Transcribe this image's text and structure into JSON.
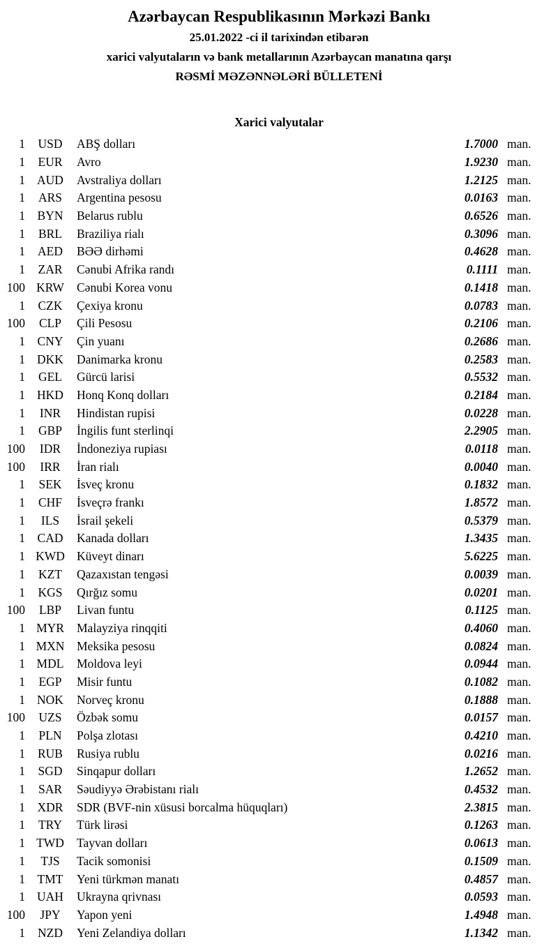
{
  "header": {
    "title": "Azərbaycan Respublikasının Mərkəzi Bankı",
    "date_line": "25.01.2022 -ci il tarixindən etibarən",
    "subject_line": "xarici valyutaların və bank metallarının Azərbaycan manatına qarşı",
    "bulletin_line": "RƏSMİ MƏZƏNNƏLƏRİ BÜLLETENİ"
  },
  "section": {
    "title": "Xarici valyutalar"
  },
  "rates": {
    "unit_label": "man.",
    "rows": [
      {
        "qty": "1",
        "code": "USD",
        "name": "ABŞ dolları",
        "rate": "1.7000"
      },
      {
        "qty": "1",
        "code": "EUR",
        "name": "Avro",
        "rate": "1.9230"
      },
      {
        "qty": "1",
        "code": "AUD",
        "name": "Avstraliya dolları",
        "rate": "1.2125"
      },
      {
        "qty": "1",
        "code": "ARS",
        "name": "Argentina pesosu",
        "rate": "0.0163"
      },
      {
        "qty": "1",
        "code": "BYN",
        "name": "Belarus rublu",
        "rate": "0.6526"
      },
      {
        "qty": "1",
        "code": "BRL",
        "name": "Braziliya rialı",
        "rate": "0.3096"
      },
      {
        "qty": "1",
        "code": "AED",
        "name": "BƏƏ dirhəmi",
        "rate": "0.4628"
      },
      {
        "qty": "1",
        "code": "ZAR",
        "name": "Cənubi Afrika randı",
        "rate": "0.1111"
      },
      {
        "qty": "100",
        "code": "KRW",
        "name": "Cənubi Korea vonu",
        "rate": "0.1418"
      },
      {
        "qty": "1",
        "code": "CZK",
        "name": "Çexiya kronu",
        "rate": "0.0783"
      },
      {
        "qty": "100",
        "code": "CLP",
        "name": "Çili Pesosu",
        "rate": "0.2106"
      },
      {
        "qty": "1",
        "code": "CNY",
        "name": "Çin yuanı",
        "rate": "0.2686"
      },
      {
        "qty": "1",
        "code": "DKK",
        "name": "Danimarka kronu",
        "rate": "0.2583"
      },
      {
        "qty": "1",
        "code": "GEL",
        "name": "Gürcü larisi",
        "rate": "0.5532"
      },
      {
        "qty": "1",
        "code": "HKD",
        "name": "Honq Konq dolları",
        "rate": "0.2184"
      },
      {
        "qty": "1",
        "code": "INR",
        "name": "Hindistan rupisi",
        "rate": "0.0228"
      },
      {
        "qty": "1",
        "code": "GBP",
        "name": "İngilis funt sterlinqi",
        "rate": "2.2905"
      },
      {
        "qty": "100",
        "code": "IDR",
        "name": "İndoneziya rupiası",
        "rate": "0.0118"
      },
      {
        "qty": "100",
        "code": "IRR",
        "name": "İran rialı",
        "rate": "0.0040"
      },
      {
        "qty": "1",
        "code": "SEK",
        "name": "İsveç kronu",
        "rate": "0.1832"
      },
      {
        "qty": "1",
        "code": "CHF",
        "name": "İsveçrə frankı",
        "rate": "1.8572"
      },
      {
        "qty": "1",
        "code": "ILS",
        "name": "İsrail şekeli",
        "rate": "0.5379"
      },
      {
        "qty": "1",
        "code": "CAD",
        "name": "Kanada dolları",
        "rate": "1.3435"
      },
      {
        "qty": "1",
        "code": "KWD",
        "name": "Küveyt dinarı",
        "rate": "5.6225"
      },
      {
        "qty": "1",
        "code": "KZT",
        "name": "Qazaxıstan tengəsi",
        "rate": "0.0039"
      },
      {
        "qty": "1",
        "code": "KGS",
        "name": "Qırğız somu",
        "rate": "0.0201"
      },
      {
        "qty": "100",
        "code": "LBP",
        "name": "Livan funtu",
        "rate": "0.1125"
      },
      {
        "qty": "1",
        "code": "MYR",
        "name": "Malayziya rinqqiti",
        "rate": "0.4060"
      },
      {
        "qty": "1",
        "code": "MXN",
        "name": "Meksika pesosu",
        "rate": "0.0824"
      },
      {
        "qty": "1",
        "code": "MDL",
        "name": "Moldova leyi",
        "rate": "0.0944"
      },
      {
        "qty": "1",
        "code": "EGP",
        "name": "Misir funtu",
        "rate": "0.1082"
      },
      {
        "qty": "1",
        "code": "NOK",
        "name": "Norveç kronu",
        "rate": "0.1888"
      },
      {
        "qty": "100",
        "code": "UZS",
        "name": "Özbək somu",
        "rate": "0.0157"
      },
      {
        "qty": "1",
        "code": "PLN",
        "name": "Polşa zlotası",
        "rate": "0.4210"
      },
      {
        "qty": "1",
        "code": "RUB",
        "name": "Rusiya rublu",
        "rate": "0.0216"
      },
      {
        "qty": "1",
        "code": "SGD",
        "name": "Sinqapur dolları",
        "rate": "1.2652"
      },
      {
        "qty": "1",
        "code": "SAR",
        "name": "Səudiyyə Ərəbistanı rialı",
        "rate": "0.4532"
      },
      {
        "qty": "1",
        "code": "XDR",
        "name": "SDR (BVF-nin xüsusi borcalma hüquqları)",
        "rate": "2.3815"
      },
      {
        "qty": "1",
        "code": "TRY",
        "name": "Türk lirəsi",
        "rate": "0.1263"
      },
      {
        "qty": "1",
        "code": "TWD",
        "name": "Tayvan dolları",
        "rate": "0.0613"
      },
      {
        "qty": "1",
        "code": "TJS",
        "name": "Tacik somonisi",
        "rate": "0.1509"
      },
      {
        "qty": "1",
        "code": "TMT",
        "name": "Yeni türkmən manatı",
        "rate": "0.4857"
      },
      {
        "qty": "1",
        "code": "UAH",
        "name": "Ukrayna qrivnası",
        "rate": "0.0593"
      },
      {
        "qty": "100",
        "code": "JPY",
        "name": "Yapon yeni",
        "rate": "1.4948"
      },
      {
        "qty": "1",
        "code": "NZD",
        "name": "Yeni Zelandiya dolları",
        "rate": "1.1342"
      }
    ]
  },
  "colors": {
    "text": "#000000",
    "background": "#ffffff"
  }
}
